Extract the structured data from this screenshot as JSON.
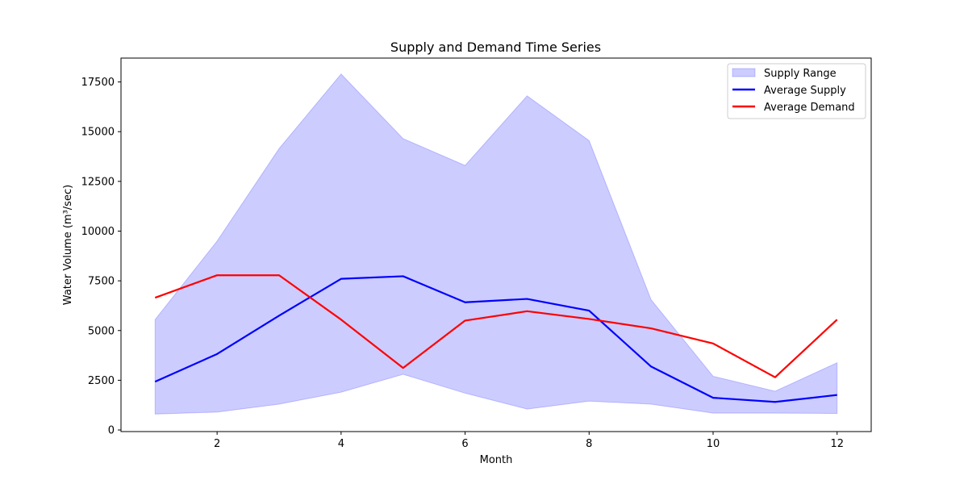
{
  "chart_data": {
    "type": "line",
    "title": "Supply and Demand Time Series",
    "xlabel": "Month",
    "ylabel": "Water Volume (m³/sec)",
    "x": [
      1,
      2,
      3,
      4,
      5,
      6,
      7,
      8,
      9,
      10,
      11,
      12
    ],
    "xticks": [
      2,
      4,
      6,
      8,
      10,
      12
    ],
    "yticks": [
      0,
      2500,
      5000,
      7500,
      10000,
      12500,
      15000,
      17500
    ],
    "xlim": [
      0.45,
      12.55
    ],
    "ylim": [
      -80,
      18700
    ],
    "grid": false,
    "legend_position": "top-right",
    "range": {
      "name": "Supply Range",
      "color": "#0000ff",
      "lower": [
        800,
        900,
        1300,
        1900,
        2800,
        1850,
        1050,
        1450,
        1300,
        850,
        850,
        830
      ],
      "upper": [
        5550,
        9500,
        14150,
        17900,
        14650,
        13300,
        16800,
        14550,
        6550,
        2700,
        1950,
        3380
      ]
    },
    "series": [
      {
        "name": "Average Supply",
        "color": "#0000ff",
        "values": [
          2430,
          3820,
          5750,
          7600,
          7730,
          6420,
          6590,
          6000,
          3190,
          1620,
          1410,
          1760
        ]
      },
      {
        "name": "Average Demand",
        "color": "#ff0000",
        "values": [
          6650,
          7780,
          7780,
          5550,
          3120,
          5500,
          5970,
          5580,
          5110,
          4350,
          2650,
          5550
        ]
      }
    ]
  }
}
